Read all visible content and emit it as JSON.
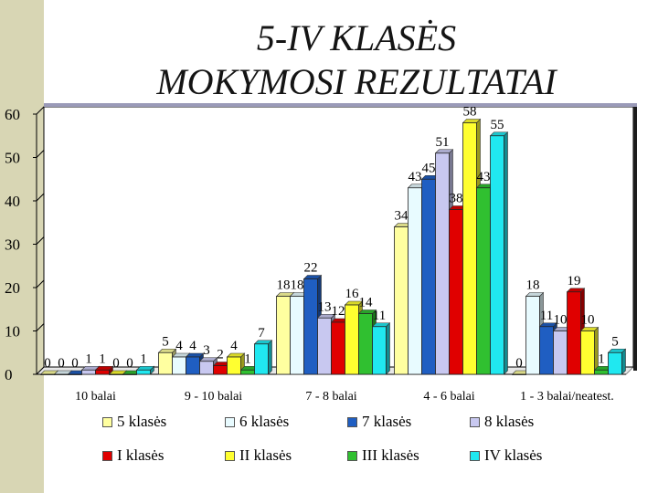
{
  "title_line1": "5-IV KLASĖS",
  "title_line2": "MOKYMOSI REZULTATAI",
  "chart_data": {
    "type": "bar",
    "categories": [
      "10 balai",
      "9 - 10 balai",
      "7 - 8 balai",
      "4 - 6 balai",
      "1 - 3 balai/neatest."
    ],
    "series": [
      {
        "name": "5 klasės",
        "values": [
          0,
          5,
          18,
          34,
          0
        ],
        "color": "#ffffa0"
      },
      {
        "name": "6 klasės",
        "values": [
          0,
          4,
          18,
          43,
          18
        ],
        "color": "#e8fbff"
      },
      {
        "name": "7 klasės",
        "values": [
          0,
          4,
          22,
          45,
          11
        ],
        "color": "#1f5ec2"
      },
      {
        "name": "8 klasės",
        "values": [
          1,
          3,
          13,
          51,
          10
        ],
        "color": "#c8c8f0"
      },
      {
        "name": "I klasės",
        "values": [
          1,
          2,
          12,
          38,
          19
        ],
        "color": "#e00000"
      },
      {
        "name": "II klasės",
        "values": [
          0,
          4,
          16,
          58,
          10
        ],
        "color": "#ffff30"
      },
      {
        "name": "III klasės",
        "values": [
          0,
          1,
          14,
          43,
          1
        ],
        "color": "#30c030"
      },
      {
        "name": "IV klasės",
        "values": [
          1,
          7,
          11,
          55,
          5
        ],
        "color": "#20e8f0"
      }
    ],
    "yticks": [
      0,
      10,
      20,
      30,
      40,
      50,
      60
    ],
    "ylim": [
      0,
      60
    ],
    "grid": false,
    "legend_position": "bottom"
  }
}
